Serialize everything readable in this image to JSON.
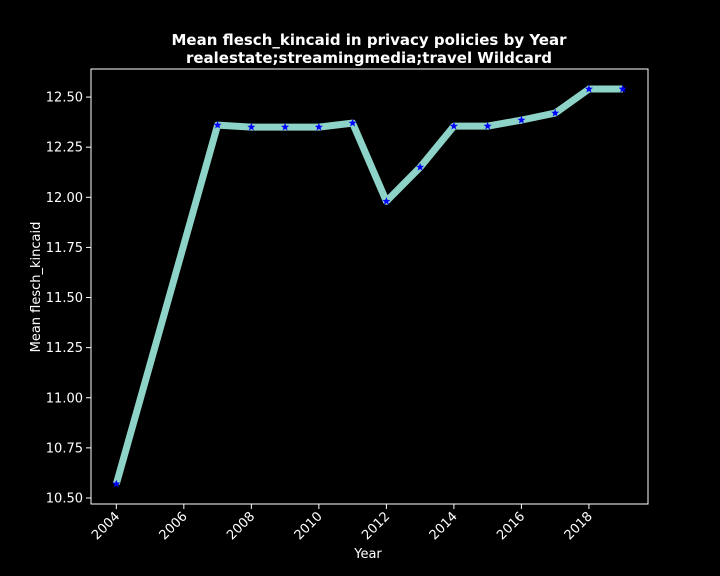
{
  "chart_data": {
    "type": "line",
    "title": "Mean flesch_kincaid in privacy policies by Year",
    "subtitle": "realestate;streamingmedia;travel Wildcard",
    "xlabel": "Year",
    "ylabel": "Mean flesch_kincaid",
    "x": [
      2004,
      2007,
      2008,
      2009,
      2010,
      2011,
      2012,
      2013,
      2014,
      2015,
      2016,
      2017,
      2018,
      2019
    ],
    "series": [
      {
        "values": [
          10.57,
          12.36,
          12.35,
          12.35,
          12.35,
          12.37,
          11.98,
          12.15,
          12.355,
          12.355,
          12.385,
          12.42,
          12.54,
          12.54
        ]
      }
    ],
    "xlim": [
      2003.25,
      2019.75
    ],
    "ylim": [
      10.47,
      12.64
    ],
    "xticks": [
      2004,
      2006,
      2008,
      2010,
      2012,
      2014,
      2016,
      2018
    ],
    "yticks": [
      "10.50",
      "10.75",
      "11.00",
      "11.25",
      "11.50",
      "11.75",
      "12.00",
      "12.25",
      "12.50"
    ],
    "grid": false,
    "line_color": "#8dd3c7",
    "marker_color": "#0000ff",
    "background": "#000000",
    "axes_color": "#ffffff"
  }
}
